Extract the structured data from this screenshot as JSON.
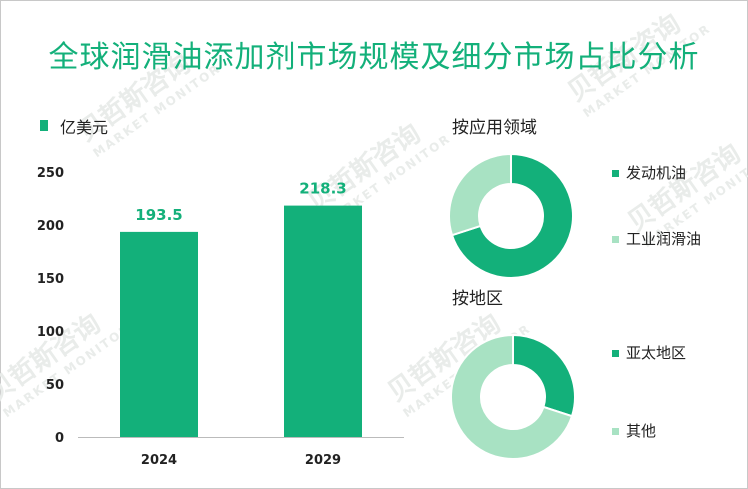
{
  "title": "全球润滑油添加剂市场规模及细分市场占比分析",
  "watermark": {
    "brand": "贝哲斯咨询",
    "sub": "MARKET MONITOR"
  },
  "colors": {
    "primary": "#13b07a",
    "secondary": "#a8e2c3",
    "title": "#13b07a",
    "axis": "#bbbbbb"
  },
  "chart_data": [
    {
      "type": "bar",
      "title": "",
      "legend_label": "亿美元",
      "categories": [
        "2024",
        "2029"
      ],
      "values": [
        193.5,
        218.3
      ],
      "value_labels": [
        "193.5",
        "218.3"
      ],
      "yticks": [
        "0",
        "50",
        "100",
        "150",
        "200",
        "250"
      ],
      "ylim": [
        0,
        250
      ]
    },
    {
      "type": "pie",
      "title": "按应用领域",
      "labels": [
        "发动机油",
        "工业润滑油"
      ],
      "values": [
        70,
        30
      ]
    },
    {
      "type": "pie",
      "title": "按地区",
      "labels": [
        "亚太地区",
        "其他"
      ],
      "values": [
        30,
        70
      ]
    }
  ]
}
